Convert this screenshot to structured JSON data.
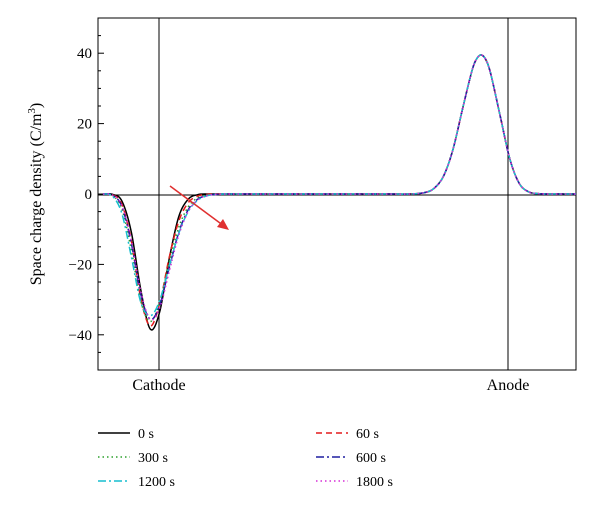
{
  "chart_data": {
    "type": "line",
    "ylabel": "Space charge density (C/m",
    "ylabel_superscript": "3",
    "ylabel_close": ")",
    "ylim": [
      -50,
      50
    ],
    "yticks": [
      -40,
      -20,
      0,
      20,
      40
    ],
    "ytick_labels": [
      "−40",
      "−20",
      "0",
      "20",
      "40"
    ],
    "x_range": [
      0,
      1
    ],
    "position_labels": [
      "Cathode",
      "Anode"
    ],
    "grid": false,
    "legend_position": "bottom",
    "annotation": "arrow across cathode peaks indicating increasing time",
    "x": [
      0.0,
      0.02,
      0.04,
      0.06,
      0.08,
      0.1,
      0.12,
      0.14,
      0.16,
      0.18,
      0.2,
      0.22,
      0.24,
      0.26,
      0.28,
      0.3,
      0.35,
      0.4,
      0.45,
      0.5,
      0.55,
      0.6,
      0.65,
      0.68,
      0.7,
      0.72,
      0.74,
      0.76,
      0.78,
      0.79,
      0.8,
      0.81,
      0.82,
      0.84,
      0.86,
      0.88,
      0.9,
      0.92,
      0.94,
      0.96,
      1.0
    ],
    "series": [
      {
        "name": "0 s",
        "color": "#000000",
        "dash": "",
        "values": [
          0,
          -0.1,
          -2.0,
          -10.9,
          -27.3,
          -38.4,
          -33.4,
          -18.4,
          -6.5,
          -1.5,
          -0.2,
          0,
          0,
          0,
          0,
          0,
          0,
          0,
          0,
          0,
          0,
          0,
          0,
          0.4,
          1.6,
          5.1,
          12.7,
          24.1,
          35.0,
          38.4,
          39.5,
          38.0,
          34.0,
          22.0,
          10.0,
          3.0,
          0.6,
          0.1,
          0,
          0,
          0
        ]
      },
      {
        "name": "60 s",
        "color": "#e41a1c",
        "dash": "6,4",
        "values": [
          0,
          -0.2,
          -3.0,
          -13.4,
          -29.7,
          -37.5,
          -31.0,
          -18.0,
          -7.8,
          -2.5,
          -0.6,
          -0.1,
          0,
          0,
          0,
          0,
          0,
          0,
          0,
          0,
          0,
          0,
          0,
          0.4,
          1.6,
          5.1,
          12.7,
          24.1,
          35.0,
          38.4,
          39.5,
          38.0,
          34.0,
          22.0,
          10.0,
          3.0,
          0.6,
          0.1,
          0,
          0,
          0
        ]
      },
      {
        "name": "300 s",
        "color": "#2ca02c",
        "dash": "1.5,3",
        "values": [
          0,
          -0.4,
          -4.3,
          -16.0,
          -30.5,
          -36.2,
          -30.7,
          -19.3,
          -9.5,
          -3.7,
          -1.1,
          -0.3,
          -0.1,
          0,
          0,
          0,
          0,
          0,
          0,
          0,
          0,
          0,
          0,
          0.4,
          1.6,
          5.1,
          12.7,
          24.1,
          35.0,
          38.4,
          39.5,
          38.0,
          34.0,
          22.0,
          10.0,
          3.0,
          0.6,
          0.1,
          0,
          0,
          0
        ]
      },
      {
        "name": "600 s",
        "color": "#1f1fa0",
        "dash": "8,3,2,3",
        "values": [
          0,
          -0.3,
          -3.6,
          -14.1,
          -28.6,
          -35.6,
          -31.5,
          -21.0,
          -11.0,
          -4.5,
          -1.5,
          -0.4,
          -0.1,
          0,
          0,
          0,
          0,
          0,
          0,
          0,
          0,
          0,
          0,
          0.4,
          1.6,
          5.1,
          12.7,
          24.1,
          35.0,
          38.4,
          39.5,
          38.0,
          34.0,
          22.0,
          10.0,
          3.0,
          0.6,
          0.1,
          0,
          0,
          0
        ]
      },
      {
        "name": "1200 s",
        "color": "#17becf",
        "dash": "8,3,2,3",
        "values": [
          0,
          -0.6,
          -5.6,
          -17.9,
          -30.8,
          -34.6,
          -30.2,
          -20.5,
          -11.3,
          -5.0,
          -1.8,
          -0.5,
          -0.1,
          0,
          0,
          0,
          0,
          0,
          0,
          0,
          0,
          0,
          0,
          0.4,
          1.6,
          5.1,
          12.7,
          24.1,
          35.0,
          38.4,
          39.5,
          38.0,
          34.0,
          22.0,
          10.0,
          3.0,
          0.6,
          0.1,
          0,
          0,
          0
        ]
      },
      {
        "name": "1800 s",
        "color": "#d62fd6",
        "dash": "1.5,3",
        "values": [
          0,
          -0.3,
          -3.3,
          -13.2,
          -27.7,
          -35.6,
          -32.3,
          -22.0,
          -11.8,
          -5.0,
          -1.7,
          -0.5,
          -0.1,
          0,
          0,
          0,
          0,
          0,
          0,
          0,
          0,
          0,
          0,
          0.4,
          1.6,
          5.1,
          12.7,
          24.1,
          35.0,
          38.4,
          39.5,
          38.0,
          34.0,
          22.0,
          10.0,
          3.0,
          0.6,
          0.1,
          0,
          0,
          0
        ]
      }
    ]
  }
}
